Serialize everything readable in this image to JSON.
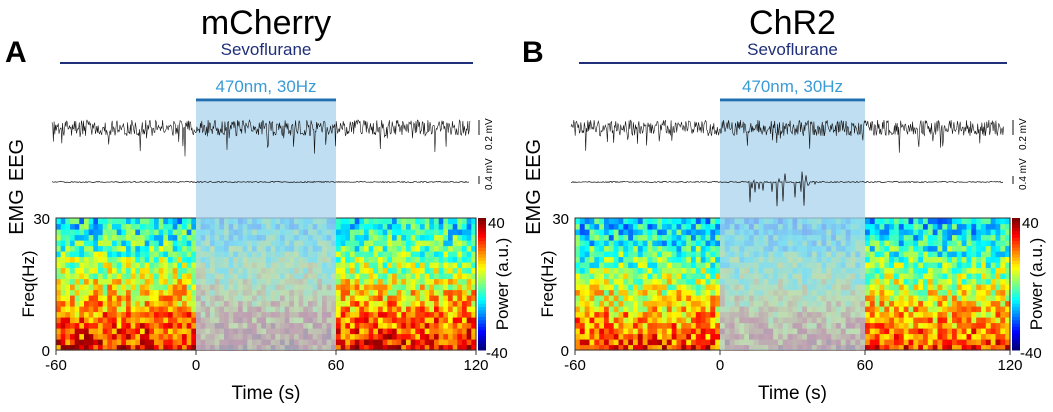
{
  "chart_data": [
    {
      "type": "heatmap",
      "panel_label": "A",
      "title": "mCherry",
      "drug_label": "Sevoflurane",
      "stim_label": "470nm, 30Hz",
      "stim_window": [
        0,
        60
      ],
      "trace_labels": [
        "EEG",
        "EMG"
      ],
      "eeg_scale": "0.2 mV",
      "emg_scale": "0.4 mV",
      "emg_bursts": false,
      "xlabel": "Time (s)",
      "ylabel": "Freq(Hz)",
      "xlim": [
        -60,
        120
      ],
      "ylim": [
        0,
        30
      ],
      "xticks": [
        "-60",
        "0",
        "60",
        "120"
      ],
      "yticks": [
        "0",
        "30"
      ],
      "colorbar": {
        "label": "Power (a.u.)",
        "range": [
          -40,
          40
        ],
        "ticks": [
          "40",
          "-40"
        ],
        "colormap": "jet"
      },
      "power_profile_by_freq": [
        28,
        24,
        18,
        12,
        6,
        0,
        -6,
        -10
      ]
    },
    {
      "type": "heatmap",
      "panel_label": "B",
      "title": "ChR2",
      "drug_label": "Sevoflurane",
      "stim_label": "470nm, 30Hz",
      "stim_window": [
        0,
        60
      ],
      "trace_labels": [
        "EEG",
        "EMG"
      ],
      "eeg_scale": "0.2 mV",
      "emg_scale": "0.4 mV",
      "emg_bursts": true,
      "xlabel": "Time (s)",
      "ylabel": "Freq(Hz)",
      "xlim": [
        -60,
        120
      ],
      "ylim": [
        0,
        30
      ],
      "xticks": [
        "-60",
        "0",
        "60",
        "120"
      ],
      "yticks": [
        "0",
        "30"
      ],
      "colorbar": {
        "label": "Power (a.u.)",
        "range": [
          -40,
          40
        ],
        "ticks": [
          "40",
          "-40"
        ],
        "colormap": "jet"
      },
      "power_profile_by_freq": [
        26,
        20,
        14,
        8,
        2,
        -4,
        -9,
        -13
      ]
    }
  ],
  "colors": {
    "drug_line": "#1f2f7a",
    "stim_bar": "#1f6fb0",
    "stim_text": "#3a9bd5",
    "stim_shade": "#a9d3ee"
  }
}
